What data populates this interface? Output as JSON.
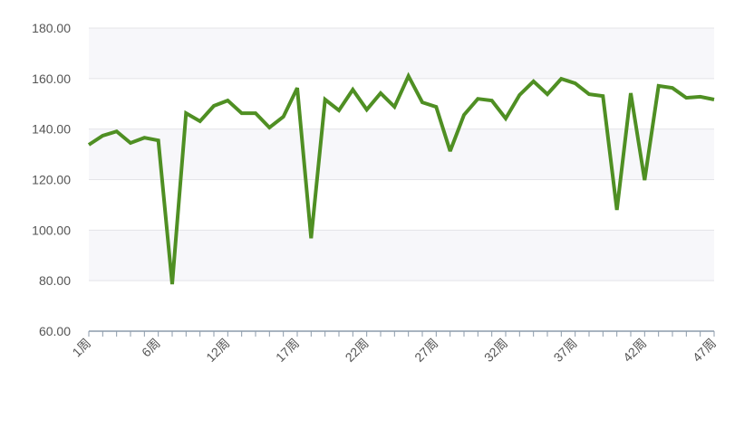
{
  "chart_data": {
    "type": "line",
    "title": "",
    "xlabel": "",
    "ylabel": "",
    "ylim": [
      60,
      180
    ],
    "yticks": [
      "60.00",
      "80.00",
      "100.00",
      "120.00",
      "140.00",
      "160.00",
      "180.00"
    ],
    "categories": [
      "1周",
      "",
      "",
      "",
      "",
      "6周",
      "",
      "",
      "",
      "",
      "12周",
      "",
      "",
      "",
      "",
      "17周",
      "",
      "",
      "",
      "",
      "22周",
      "",
      "",
      "",
      "",
      "27周",
      "",
      "",
      "",
      "",
      "32周",
      "",
      "",
      "",
      "",
      "37周",
      "",
      "",
      "",
      "",
      "42周",
      "",
      "",
      "",
      "",
      "47周"
    ],
    "values": [
      133.8,
      137.4,
      139.1,
      134.5,
      136.6,
      135.5,
      78.6,
      146.3,
      143.1,
      149.2,
      151.3,
      146.3,
      146.3,
      140.6,
      144.9,
      156.3,
      96.8,
      151.7,
      147.4,
      155.6,
      147.7,
      154.2,
      148.8,
      161.0,
      150.6,
      148.8,
      131.3,
      145.6,
      152.0,
      151.3,
      144.2,
      153.5,
      158.9,
      153.8,
      159.9,
      158.1,
      153.8,
      153.1,
      108.0,
      154.2,
      119.8,
      157.1,
      156.3,
      152.4,
      152.8,
      151.7
    ],
    "grid": true,
    "legend": "none",
    "colors": {
      "line": "#4f8f23",
      "band": "#f7f7fa",
      "gridline": "#e4e4e8",
      "axis": "#8c9bab",
      "label": "#555555"
    }
  }
}
